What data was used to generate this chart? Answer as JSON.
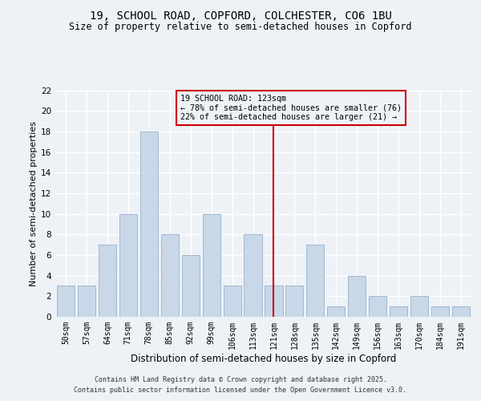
{
  "title1": "19, SCHOOL ROAD, COPFORD, COLCHESTER, CO6 1BU",
  "title2": "Size of property relative to semi-detached houses in Copford",
  "xlabel": "Distribution of semi-detached houses by size in Copford",
  "ylabel": "Number of semi-detached properties",
  "categories": [
    "50sqm",
    "57sqm",
    "64sqm",
    "71sqm",
    "78sqm",
    "85sqm",
    "92sqm",
    "99sqm",
    "106sqm",
    "113sqm",
    "121sqm",
    "128sqm",
    "135sqm",
    "142sqm",
    "149sqm",
    "156sqm",
    "163sqm",
    "170sqm",
    "184sqm",
    "191sqm"
  ],
  "values": [
    3,
    3,
    7,
    10,
    18,
    8,
    6,
    10,
    3,
    8,
    3,
    3,
    7,
    1,
    4,
    2,
    1,
    2,
    1,
    1
  ],
  "bar_color": "#c8d8e8",
  "bar_edgecolor": "#a0b8d0",
  "marker_bin_index": 10,
  "marker_label": "19 SCHOOL ROAD: 123sqm",
  "pct_smaller": 78,
  "pct_smaller_n": 76,
  "pct_larger": 22,
  "pct_larger_n": 21,
  "annotation_box_color": "#cc0000",
  "vline_color": "#cc0000",
  "ylim": [
    0,
    22
  ],
  "yticks": [
    0,
    2,
    4,
    6,
    8,
    10,
    12,
    14,
    16,
    18,
    20,
    22
  ],
  "background_color": "#eef2f7",
  "grid_color": "#ffffff",
  "footer1": "Contains HM Land Registry data © Crown copyright and database right 2025.",
  "footer2": "Contains public sector information licensed under the Open Government Licence v3.0."
}
